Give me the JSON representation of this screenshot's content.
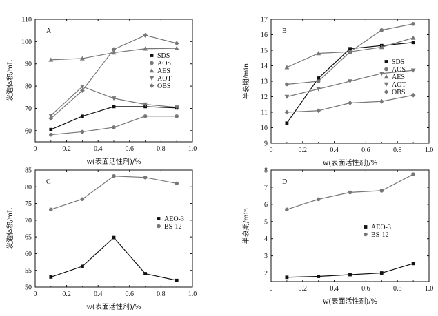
{
  "chart_data": [
    {
      "type": "line",
      "panel": "A",
      "xlabel": "w(表面活性剂)/%",
      "ylabel": "发泡体积/mL",
      "xlim": [
        0,
        1.0
      ],
      "ylim": [
        55,
        110
      ],
      "xticks": [
        "0",
        "0.2",
        "0.4",
        "0.6",
        "0.8",
        "1.0"
      ],
      "yticks": [
        "60",
        "70",
        "80",
        "90",
        "100",
        "110"
      ],
      "legend_position": "right",
      "x": [
        0.1,
        0.3,
        0.5,
        0.7,
        0.9
      ],
      "series": [
        {
          "name": "SDS",
          "marker": "square",
          "color": "#111111",
          "values": [
            60.5,
            66.5,
            70.8,
            70.8,
            70.2
          ]
        },
        {
          "name": "AOS",
          "marker": "circle",
          "color": "#777777",
          "values": [
            58.2,
            59.5,
            61.5,
            66.5,
            66.5
          ]
        },
        {
          "name": "AES",
          "marker": "triangle-up",
          "color": "#777777",
          "values": [
            91.8,
            92.4,
            95.0,
            96.8,
            97.0
          ]
        },
        {
          "name": "AOT",
          "marker": "triangle-down",
          "color": "#777777",
          "values": [
            66.8,
            79.8,
            74.5,
            71.8,
            70.5
          ]
        },
        {
          "name": "OBS",
          "marker": "diamond",
          "color": "#777777",
          "values": [
            65.5,
            78.0,
            96.5,
            102.8,
            99.2
          ]
        }
      ]
    },
    {
      "type": "line",
      "panel": "B",
      "xlabel": "w(表面活性剂)/%",
      "ylabel": "半衰期/min",
      "xlim": [
        0,
        1.0
      ],
      "ylim": [
        9,
        17
      ],
      "xticks": [
        "0",
        "0.2",
        "0.4",
        "0.6",
        "0.8",
        "1.0"
      ],
      "yticks": [
        "9",
        "10",
        "11",
        "12",
        "13",
        "14",
        "15",
        "16",
        "17"
      ],
      "legend_position": "right",
      "x": [
        0.1,
        0.3,
        0.5,
        0.7,
        0.9
      ],
      "series": [
        {
          "name": "SDS",
          "marker": "square",
          "color": "#111111",
          "values": [
            10.3,
            13.2,
            15.1,
            15.3,
            15.5
          ]
        },
        {
          "name": "AOS",
          "marker": "circle",
          "color": "#777777",
          "values": [
            12.8,
            13.0,
            14.9,
            16.3,
            16.7
          ]
        },
        {
          "name": "AES",
          "marker": "triangle-up",
          "color": "#777777",
          "values": [
            13.9,
            14.8,
            14.9,
            15.2,
            15.8
          ]
        },
        {
          "name": "AOT",
          "marker": "triangle-down",
          "color": "#777777",
          "values": [
            12.0,
            12.5,
            13.0,
            13.5,
            13.7
          ]
        },
        {
          "name": "OBS",
          "marker": "diamond",
          "color": "#777777",
          "values": [
            11.0,
            11.1,
            11.6,
            11.7,
            12.1
          ]
        }
      ]
    },
    {
      "type": "line",
      "panel": "C",
      "xlabel": "w(表面活性剂)/%",
      "ylabel": "发泡体积/mL",
      "xlim": [
        0,
        1.0
      ],
      "ylim": [
        50,
        85
      ],
      "xticks": [
        "0",
        "0.2",
        "0.4",
        "0.6",
        "0.8",
        "1.0"
      ],
      "yticks": [
        "50",
        "55",
        "60",
        "65",
        "70",
        "75",
        "80",
        "85"
      ],
      "legend_position": "right",
      "x": [
        0.1,
        0.3,
        0.5,
        0.7,
        0.9
      ],
      "series": [
        {
          "name": "AEO-3",
          "marker": "square",
          "color": "#111111",
          "values": [
            53.0,
            56.2,
            64.8,
            54.0,
            52.0
          ]
        },
        {
          "name": "BS-12",
          "marker": "circle",
          "color": "#777777",
          "values": [
            73.2,
            76.3,
            83.2,
            82.8,
            81.0
          ]
        }
      ]
    },
    {
      "type": "line",
      "panel": "D",
      "xlabel": "w(表面活性剂)/%",
      "ylabel": "半衰期/min",
      "xlim": [
        0,
        1.0
      ],
      "ylim": [
        1.5,
        8
      ],
      "xticks": [
        "0",
        "0.2",
        "0.4",
        "0.6",
        "0.8",
        "1.0"
      ],
      "yticks": [
        "2",
        "3",
        "4",
        "5",
        "6",
        "7",
        "8"
      ],
      "legend_position": "right",
      "x": [
        0.1,
        0.3,
        0.5,
        0.7,
        0.9
      ],
      "series": [
        {
          "name": "AEO-3",
          "marker": "square",
          "color": "#111111",
          "values": [
            1.75,
            1.8,
            1.9,
            2.0,
            2.55
          ]
        },
        {
          "name": "BS-12",
          "marker": "circle",
          "color": "#777777",
          "values": [
            5.7,
            6.3,
            6.7,
            6.8,
            7.75
          ]
        }
      ]
    }
  ]
}
